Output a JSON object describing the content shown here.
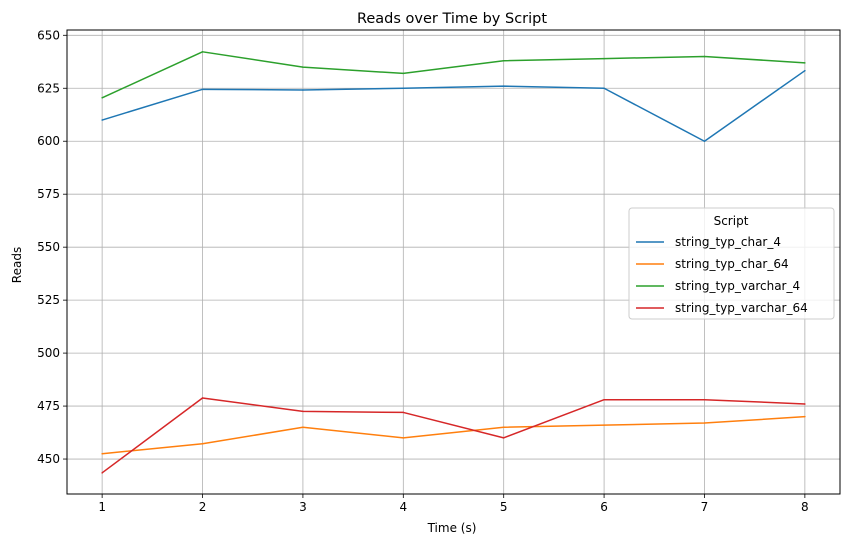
{
  "chart_data": {
    "type": "line",
    "title": "Reads over Time by Script",
    "xlabel": "Time (s)",
    "ylabel": "Reads",
    "x": [
      1,
      2,
      3,
      4,
      5,
      6,
      7,
      8
    ],
    "xticks": [
      1,
      2,
      3,
      4,
      5,
      6,
      7,
      8
    ],
    "yticks": [
      450,
      475,
      500,
      525,
      550,
      575,
      600,
      625,
      650
    ],
    "xlim": [
      0.65,
      8.35
    ],
    "ylim": [
      433.5,
      652.5
    ],
    "grid": true,
    "legend": {
      "title": "Script",
      "placement": "center-right"
    },
    "series": [
      {
        "name": "string_typ_char_4",
        "color": "#1f77b4",
        "values": [
          610,
          624.5,
          624.2,
          625,
          626,
          625,
          600,
          633.3
        ]
      },
      {
        "name": "string_typ_char_64",
        "color": "#ff7f0e",
        "values": [
          452.5,
          457.2,
          465,
          460,
          465,
          466,
          467,
          470
        ]
      },
      {
        "name": "string_typ_varchar_4",
        "color": "#2ca02c",
        "values": [
          620.5,
          642.2,
          635,
          632,
          638,
          639,
          640,
          637
        ]
      },
      {
        "name": "string_typ_varchar_64",
        "color": "#d62728",
        "values": [
          443.5,
          478.8,
          472.5,
          472,
          460,
          478,
          478,
          476
        ]
      }
    ]
  }
}
